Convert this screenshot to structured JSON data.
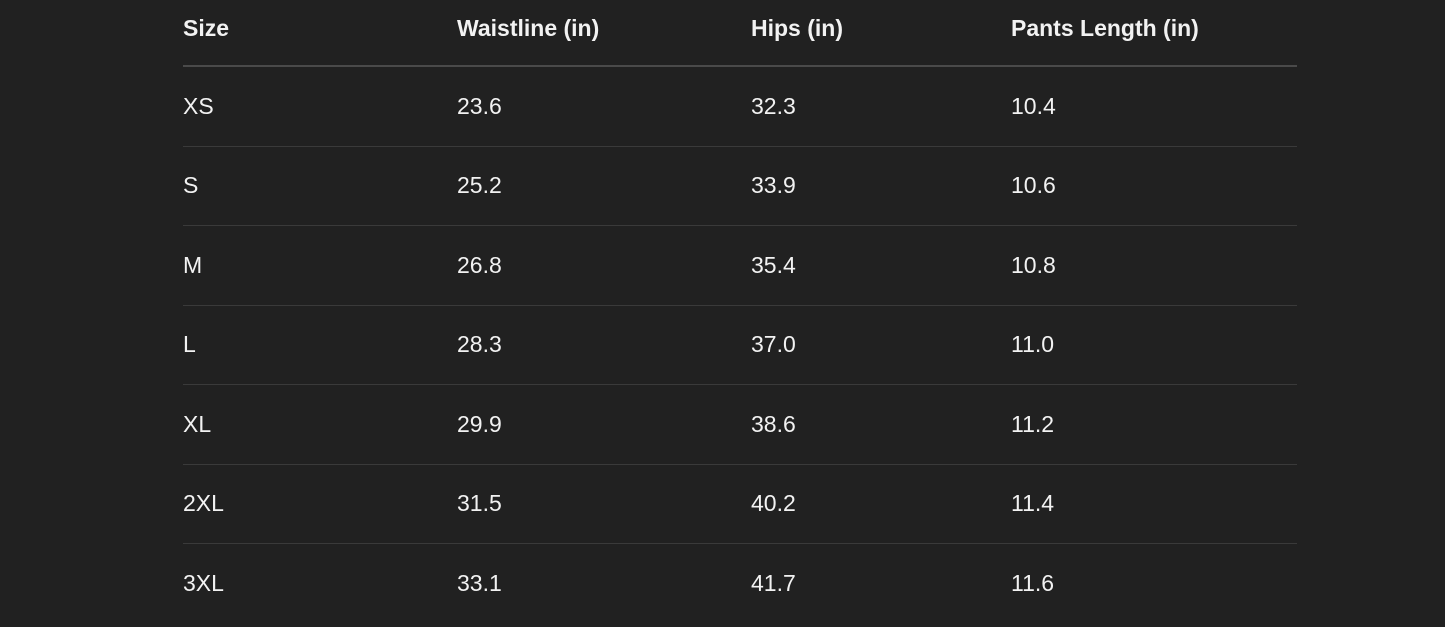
{
  "table": {
    "headers": [
      "Size",
      "Waistline (in)",
      "Hips (in)",
      "Pants Length (in)"
    ],
    "rows": [
      [
        "XS",
        "23.6",
        "32.3",
        "10.4"
      ],
      [
        "S",
        "25.2",
        "33.9",
        "10.6"
      ],
      [
        "M",
        "26.8",
        "35.4",
        "10.8"
      ],
      [
        "L",
        "28.3",
        "37.0",
        "11.0"
      ],
      [
        "XL",
        "29.9",
        "38.6",
        "11.2"
      ],
      [
        "2XL",
        "31.5",
        "40.2",
        "11.4"
      ],
      [
        "3XL",
        "33.1",
        "41.7",
        "11.6"
      ]
    ]
  }
}
